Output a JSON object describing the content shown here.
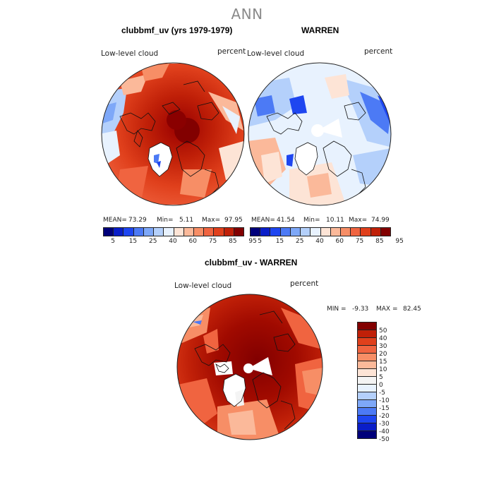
{
  "title": "ANN",
  "panels": [
    {
      "id": "model",
      "title": "clubbmf_uv (yrs 1979-1979)",
      "field": "Low-level cloud",
      "units": "percent",
      "stats": {
        "mean_label": "MEAN=",
        "mean": "73.29",
        "min_label": "Min=",
        "min": "5.11",
        "max_label": "Max=",
        "max": "97.95"
      }
    },
    {
      "id": "obs",
      "title": "WARREN",
      "field": "Low-level cloud",
      "units": "percent",
      "stats": {
        "mean_label": "MEAN=",
        "mean": "41.54",
        "min_label": "Min=",
        "min": "10.11",
        "max_label": "Max=",
        "max": "74.99"
      }
    },
    {
      "id": "diff",
      "title": "clubbmf_uv - WARREN",
      "field": "Low-level cloud",
      "units": "percent",
      "stats": {
        "min_label": "MIN =",
        "min": "-9.33",
        "max_label": "MAX =",
        "max": "82.45"
      }
    }
  ],
  "colorbar_abs": {
    "colors": [
      "#00007a",
      "#0a1ec8",
      "#1e46f0",
      "#4c7af5",
      "#7ea8f8",
      "#b4d0fb",
      "#e8f2fe",
      "#fde4d6",
      "#fbb99a",
      "#f78e66",
      "#f06440",
      "#e0401c",
      "#c02008",
      "#820000"
    ],
    "labels": [
      "5",
      "15",
      "25",
      "40",
      "60",
      "75",
      "85",
      "95"
    ]
  },
  "colorbar_diff": {
    "colors": [
      "#820000",
      "#c02008",
      "#e0401c",
      "#f06440",
      "#f78e66",
      "#fbb99a",
      "#fde4d6",
      "#f4f4f4",
      "#e8f2fe",
      "#b4d0fb",
      "#7ea8f8",
      "#4c7af5",
      "#1e46f0",
      "#0a1ec8",
      "#00007a"
    ],
    "labels": [
      "50",
      "40",
      "30",
      "20",
      "15",
      "10",
      "5",
      "0",
      "-5",
      "-10",
      "-15",
      "-20",
      "-30",
      "-40",
      "-50"
    ]
  }
}
